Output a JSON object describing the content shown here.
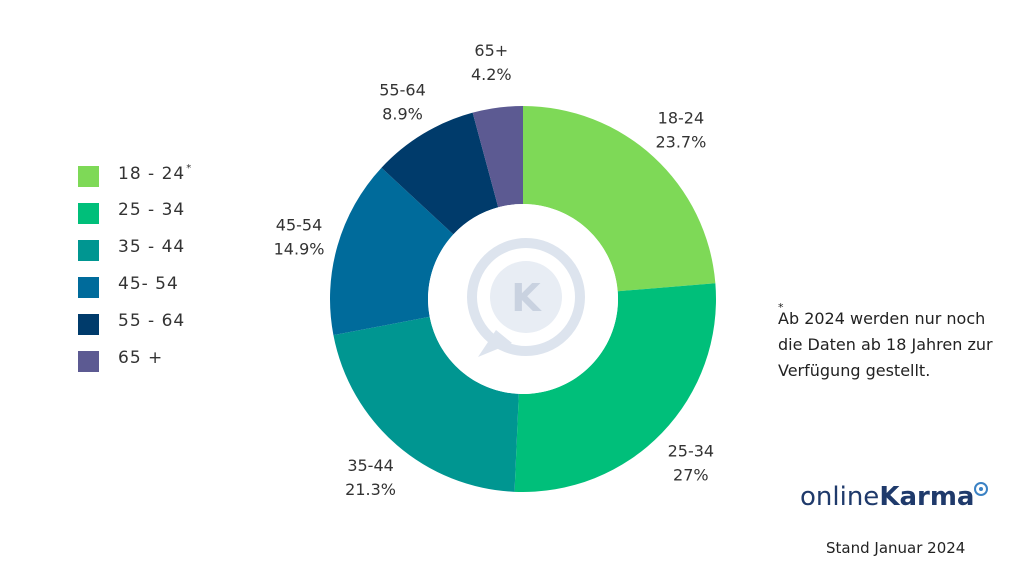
{
  "legend": [
    {
      "label": "18 - 24",
      "note": "*",
      "color": "#7ed957"
    },
    {
      "label": "25 - 34",
      "note": "",
      "color": "#00bf7a"
    },
    {
      "label": "35 - 44",
      "note": "",
      "color": "#009691"
    },
    {
      "label": "45- 54",
      "note": "",
      "color": "#006b9b"
    },
    {
      "label": "55 - 64",
      "note": "",
      "color": "#003b6b"
    },
    {
      "label": "65 +",
      "note": "",
      "color": "#5c5a92"
    }
  ],
  "chart_data": {
    "type": "pie",
    "variant": "donut",
    "categories": [
      "18-24",
      "25-34",
      "35-44",
      "45-54",
      "55-64",
      "65+"
    ],
    "values": [
      23.7,
      27,
      21.3,
      14.9,
      8.9,
      4.2
    ],
    "value_labels": [
      "23.7%",
      "27%",
      "21.3%",
      "14.9%",
      "8.9%",
      "4.2%"
    ],
    "colors": [
      "#7ed957",
      "#00bf7a",
      "#009691",
      "#006b9b",
      "#003b6b",
      "#5c5a92"
    ],
    "legend_position": "left"
  },
  "footnote": {
    "star": "*",
    "text": "Ab 2024 werden nur noch die Daten ab 18 Jahren zur Verfügung gestellt."
  },
  "logo": {
    "part1": "online",
    "part2": "Karma"
  },
  "date_note": "Stand Januar 2024"
}
